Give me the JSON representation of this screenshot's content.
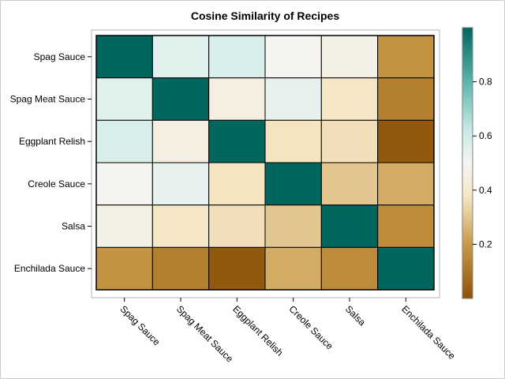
{
  "chart_data": {
    "type": "heatmap",
    "title": "Cosine Similarity of Recipes",
    "rows": [
      "Spag Sauce",
      "Spag Meat Sauce",
      "Eggplant Relish",
      "Creole Sauce",
      "Salsa",
      "Enchilada Sauce"
    ],
    "columns": [
      "Spag Sauce",
      "Spag Meat Sauce",
      "Eggplant Relish",
      "Creole Sauce",
      "Salsa",
      "Enchilada Sauce"
    ],
    "values": [
      [
        1.0,
        0.56,
        0.58,
        0.49,
        0.46,
        0.18
      ],
      [
        0.56,
        1.0,
        0.45,
        0.54,
        0.38,
        0.13
      ],
      [
        0.58,
        0.45,
        1.0,
        0.37,
        0.36,
        0.02
      ],
      [
        0.49,
        0.54,
        0.37,
        1.0,
        0.3,
        0.24
      ],
      [
        0.46,
        0.38,
        0.36,
        0.3,
        1.0,
        0.16
      ],
      [
        0.18,
        0.13,
        0.02,
        0.24,
        0.16,
        1.0
      ]
    ],
    "colorbar": {
      "range": [
        0.0,
        1.0
      ],
      "ticks": [
        0.2,
        0.4,
        0.6,
        0.8
      ],
      "tick_labels": [
        "0.2",
        "0.4",
        "0.6",
        "0.8"
      ],
      "colors": [
        {
          "stop": 0.0,
          "color": "#8c510a"
        },
        {
          "stop": 0.2,
          "color": "#c89a48"
        },
        {
          "stop": 0.375,
          "color": "#f5e6c4"
        },
        {
          "stop": 0.5,
          "color": "#f5f5f5"
        },
        {
          "stop": 0.625,
          "color": "#c7eae5"
        },
        {
          "stop": 0.8,
          "color": "#5ab4ac"
        },
        {
          "stop": 1.0,
          "color": "#01665e"
        }
      ]
    },
    "grid": false,
    "legend": "colorbar-right"
  }
}
